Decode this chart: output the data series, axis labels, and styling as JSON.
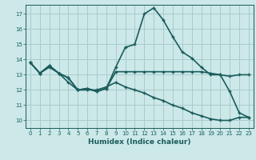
{
  "bg_color": "#cce8e8",
  "grid_color": "#aacccc",
  "line_color": "#1a5c5c",
  "xlabel": "Humidex (Indice chaleur)",
  "ylim": [
    9.5,
    17.6
  ],
  "xlim": [
    -0.5,
    23.5
  ],
  "yticks": [
    10,
    11,
    12,
    13,
    14,
    15,
    16,
    17
  ],
  "xticks": [
    0,
    1,
    2,
    3,
    4,
    5,
    6,
    7,
    8,
    9,
    10,
    11,
    12,
    13,
    14,
    15,
    16,
    17,
    18,
    19,
    20,
    21,
    22,
    23
  ],
  "line1_x": [
    0,
    1,
    2,
    3,
    4,
    5,
    6,
    7,
    8,
    9,
    10,
    11,
    12,
    13,
    14,
    15,
    16,
    17,
    18,
    19,
    20,
    21,
    22,
    23
  ],
  "line1_y": [
    13.8,
    13.1,
    13.6,
    13.1,
    12.8,
    12.0,
    12.1,
    11.9,
    12.1,
    13.5,
    14.8,
    15.0,
    17.0,
    17.4,
    16.6,
    15.5,
    14.5,
    14.1,
    13.5,
    13.0,
    13.0,
    11.9,
    10.5,
    10.2
  ],
  "line2_x": [
    0,
    1,
    2,
    3,
    4,
    5,
    6,
    7,
    8,
    9,
    10,
    11,
    12,
    13,
    14,
    15,
    16,
    17,
    18,
    19,
    20,
    21,
    22,
    23
  ],
  "line2_y": [
    13.8,
    13.1,
    13.5,
    13.1,
    12.8,
    12.0,
    12.1,
    11.9,
    12.1,
    13.2,
    13.2,
    13.2,
    13.2,
    13.2,
    13.2,
    13.2,
    13.2,
    13.2,
    13.2,
    13.1,
    13.0,
    12.9,
    13.0,
    13.0
  ],
  "line3_x": [
    0,
    1,
    2,
    3,
    4,
    5,
    6,
    7,
    8,
    9,
    10,
    11,
    12,
    13,
    14,
    15,
    16,
    17,
    18,
    19,
    20,
    21,
    22,
    23
  ],
  "line3_y": [
    13.8,
    13.1,
    13.6,
    13.1,
    12.5,
    12.0,
    12.0,
    12.0,
    12.2,
    12.5,
    12.2,
    12.0,
    11.8,
    11.5,
    11.3,
    11.0,
    10.8,
    10.5,
    10.3,
    10.1,
    10.0,
    10.0,
    10.2,
    10.2
  ]
}
